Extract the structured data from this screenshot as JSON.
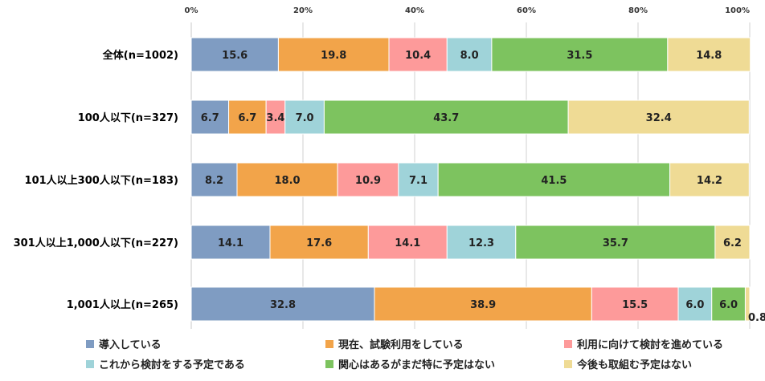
{
  "chart_data": {
    "type": "bar",
    "orientation": "horizontal",
    "stacked": true,
    "title": "",
    "xlabel": "",
    "ylabel": "",
    "xlim": [
      0,
      100
    ],
    "x_ticks": [
      "0%",
      "20%",
      "40%",
      "60%",
      "80%",
      "100%"
    ],
    "grid": true,
    "legend_position": "bottom",
    "categories": [
      "全体(n=1002)",
      "100人以下(n=327)",
      "101人以上300人以下(n=183)",
      "301人以上1,000人以下(n=227)",
      "1,001人以上(n=265)"
    ],
    "series": [
      {
        "name": "導入している",
        "color": "#7f9cc2",
        "values": [
          15.6,
          6.7,
          8.2,
          14.1,
          32.8
        ]
      },
      {
        "name": "現在、試験利用をしている",
        "color": "#f2a44a",
        "values": [
          19.8,
          6.7,
          18.0,
          17.6,
          38.9
        ]
      },
      {
        "name": "利用に向けて検討を進めている",
        "color": "#fd9a9a",
        "values": [
          10.4,
          3.4,
          10.9,
          14.1,
          15.5
        ]
      },
      {
        "name": "これから検討をする予定である",
        "color": "#9fd3d9",
        "values": [
          8.0,
          7.0,
          7.1,
          12.3,
          6.0
        ]
      },
      {
        "name": "関心はあるがまだ特に予定はない",
        "color": "#7dc35f",
        "values": [
          31.5,
          43.7,
          41.5,
          35.7,
          6.0
        ]
      },
      {
        "name": "今後も取組む予定はない",
        "color": "#efdb95",
        "values": [
          14.8,
          32.4,
          14.2,
          6.2,
          0.8
        ]
      }
    ]
  }
}
